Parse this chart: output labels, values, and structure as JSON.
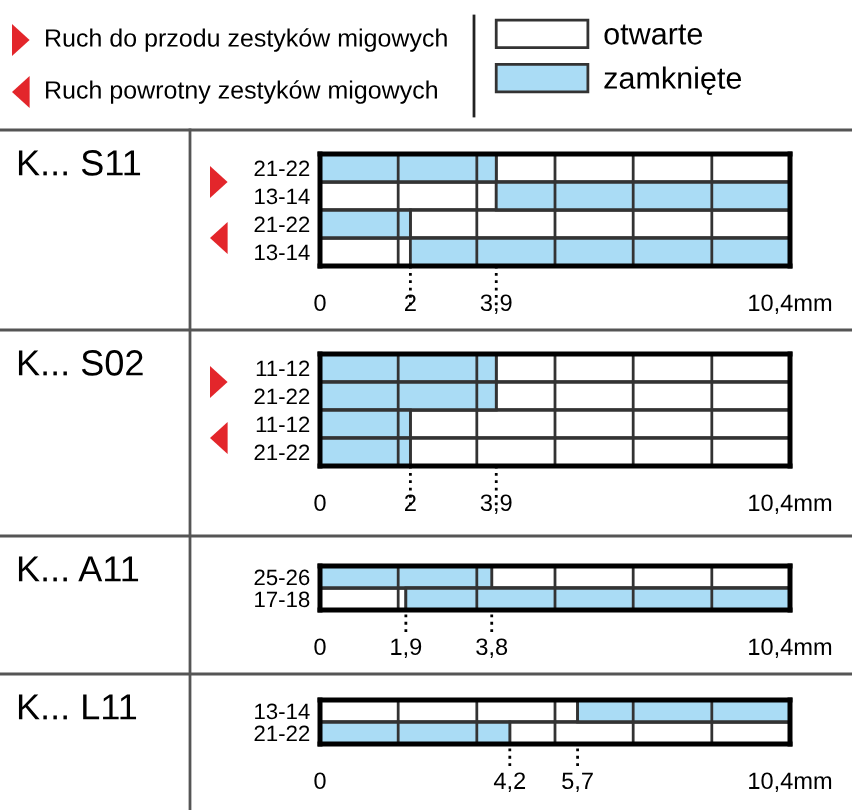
{
  "chart_data": [
    {
      "type": "bar",
      "orientation": "horizontal",
      "title": "K... S11",
      "legend": "top",
      "grid": "x",
      "annotations": [
        "Ruch do przodu zestyków migowych",
        "Ruch powrotny zestyków migowych"
      ],
      "categories": [
        "21-22",
        "13-14",
        "21-22",
        "13-14"
      ],
      "series": [
        {
          "name": "otwarte",
          "color": "#ffffff",
          "base": [
            3.9,
            0,
            2,
            0
          ],
          "values": [
            6.5,
            3.9,
            8.4,
            2
          ]
        },
        {
          "name": "zamknięte",
          "color": "#aadcf5",
          "base": [
            0,
            3.9,
            0,
            2
          ],
          "values": [
            3.9,
            6.5,
            2,
            8.4
          ]
        }
      ],
      "xlim": [
        0,
        10.4
      ],
      "xticks": [
        0,
        {
          "value": 1.73,
          "label": null
        },
        2,
        {
          "value": 3.47,
          "label": null
        },
        {
          "value": 3.9,
          "label": "3,9"
        },
        {
          "value": 5.2,
          "label": null
        },
        {
          "value": 6.93,
          "label": null
        },
        {
          "value": 8.67,
          "label": null
        },
        {
          "value": 10.4,
          "label": "10,4mm"
        }
      ]
    },
    {
      "type": "bar",
      "orientation": "horizontal",
      "title": "K... S02",
      "grid": "x",
      "categories": [
        "11-12",
        "21-22",
        "11-12",
        "21-22"
      ],
      "series": [
        {
          "color": "#ffffff",
          "base": [
            3.9,
            3.9,
            2,
            2
          ],
          "values": [
            6.5,
            6.5,
            8.4,
            8.4
          ]
        },
        {
          "color": "#aadcf5",
          "base": [
            0,
            0,
            0,
            0
          ],
          "values": [
            3.9,
            3.9,
            2,
            2
          ]
        }
      ],
      "xlim": [
        0,
        10.4
      ],
      "xticks": [
        0,
        {
          "value": 1.73,
          "label": null
        },
        2,
        {
          "value": 3.47,
          "label": null
        },
        {
          "value": 3.9,
          "label": "3,9"
        },
        {
          "value": 5.2,
          "label": null
        },
        {
          "value": 6.93,
          "label": null
        },
        {
          "value": 8.67,
          "label": null
        },
        {
          "value": 10.4,
          "label": "10,4mm"
        }
      ]
    },
    {
      "type": "bar",
      "orientation": "horizontal",
      "title": "K... A11",
      "grid": "x",
      "categories": [
        "25-26",
        "17-18"
      ],
      "series": [
        {
          "color": "#ffffff",
          "base": [
            3.8,
            0
          ],
          "values": [
            6.6,
            1.9
          ]
        },
        {
          "color": "#aadcf5",
          "base": [
            0,
            1.9
          ],
          "values": [
            3.8,
            8.5
          ]
        }
      ],
      "xlim": [
        0,
        10.4
      ],
      "xticks": [
        0,
        {
          "value": 1.73,
          "label": null
        },
        {
          "value": 1.9,
          "label": "1,9"
        },
        {
          "value": 3.47,
          "label": null
        },
        {
          "value": 3.8,
          "label": "3,8"
        },
        {
          "value": 5.2,
          "label": null
        },
        {
          "value": 6.93,
          "label": null
        },
        {
          "value": 8.67,
          "label": null
        },
        {
          "value": 10.4,
          "label": "10,4mm"
        }
      ]
    },
    {
      "type": "bar",
      "orientation": "horizontal",
      "title": "K... L11",
      "grid": "x",
      "categories": [
        "13-14",
        "21-22"
      ],
      "series": [
        {
          "color": "#ffffff",
          "base": [
            0,
            4.2
          ],
          "values": [
            5.7,
            6.2
          ]
        },
        {
          "color": "#aadcf5",
          "base": [
            5.7,
            0
          ],
          "values": [
            4.7,
            4.2
          ]
        }
      ],
      "xlim": [
        0,
        10.4
      ],
      "xticks": [
        0,
        {
          "value": 1.73,
          "label": null
        },
        {
          "value": 3.47,
          "label": null
        },
        {
          "value": 4.2,
          "label": "4,2"
        },
        {
          "value": 5.2,
          "label": null
        },
        {
          "value": 5.7,
          "label": "5,7"
        },
        {
          "value": 6.93,
          "label": null
        },
        {
          "value": 8.67,
          "label": null
        },
        {
          "value": 10.4,
          "label": "10,4mm"
        }
      ]
    }
  ]
}
